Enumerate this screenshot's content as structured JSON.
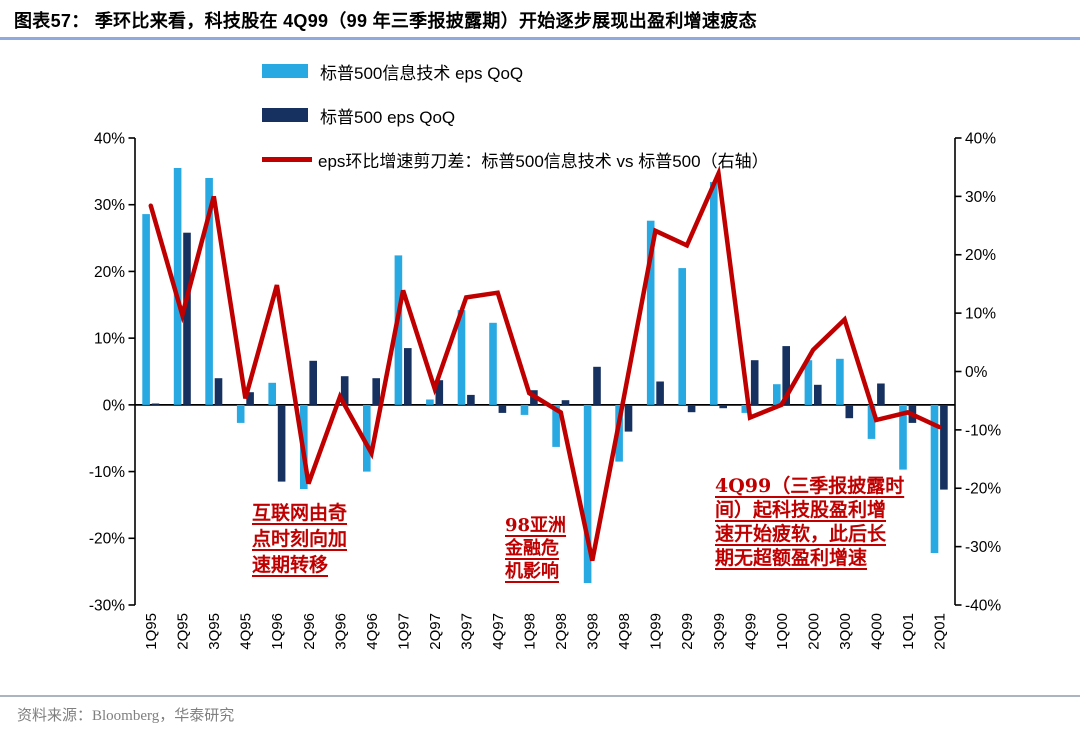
{
  "header": {
    "title": "图表57：  季环比来看，科技股在 4Q99（99 年三季报披露期）开始逐步展现出盈利增速疲态"
  },
  "footer": {
    "source": "资料来源：Bloomberg，华泰研究"
  },
  "colors": {
    "tech_blue": "#29A9E1",
    "sp_navy": "#16315F",
    "scissors_red": "#C00000",
    "title_rule_blue": "#8FAADC",
    "annotation_red": "#C00000",
    "axis_black": "#000000",
    "footer_gray": "#7F7F7F"
  },
  "chart_data": {
    "type": "bar+line",
    "grid": false,
    "legend_position": "top-left",
    "categories": [
      "1Q95",
      "2Q95",
      "3Q95",
      "4Q95",
      "1Q96",
      "2Q96",
      "3Q96",
      "4Q96",
      "1Q97",
      "2Q97",
      "3Q97",
      "4Q97",
      "1Q98",
      "2Q98",
      "3Q98",
      "4Q98",
      "1Q99",
      "2Q99",
      "3Q99",
      "4Q99",
      "1Q00",
      "2Q00",
      "3Q00",
      "4Q00",
      "1Q01",
      "2Q01"
    ],
    "series": [
      {
        "name": "标普500信息技术 eps QoQ",
        "type": "bar",
        "axis": "left",
        "color": "#29A9E1",
        "values": [
          28.6,
          35.5,
          34.0,
          -2.7,
          3.3,
          -12.6,
          0.0,
          -10.0,
          22.4,
          0.8,
          14.2,
          12.3,
          -1.5,
          -6.3,
          -26.7,
          -8.5,
          27.6,
          20.5,
          33.4,
          -1.2,
          3.1,
          6.7,
          6.9,
          -5.1,
          -9.7,
          -22.2
        ]
      },
      {
        "name": "标普500 eps QoQ",
        "type": "bar",
        "axis": "left",
        "color": "#16315F",
        "values": [
          0.2,
          25.8,
          4.0,
          1.9,
          -11.5,
          6.6,
          4.3,
          4.0,
          8.5,
          3.7,
          1.5,
          -1.2,
          2.2,
          0.7,
          5.7,
          -4.0,
          3.5,
          -1.1,
          -0.5,
          6.7,
          8.8,
          3.0,
          -2.0,
          3.2,
          -2.7,
          -12.7
        ]
      },
      {
        "name": "eps环比增速剪刀差：标普500信息技术 vs 标普500（右轴）",
        "type": "line",
        "axis": "right",
        "color": "#C00000",
        "values": [
          28.4,
          9.7,
          30.0,
          -4.6,
          14.8,
          -19.2,
          -4.3,
          -14.0,
          13.9,
          -2.9,
          12.7,
          13.5,
          -3.7,
          -7.0,
          -32.4,
          -4.5,
          24.1,
          21.6,
          33.9,
          -7.9,
          -5.7,
          3.7,
          8.9,
          -8.3,
          -7.0,
          -9.5
        ]
      }
    ],
    "left_axis": {
      "ticks": [
        "40%",
        "30%",
        "20%",
        "10%",
        "0%",
        "-10%",
        "-20%",
        "-30%"
      ],
      "range": [
        -30,
        40
      ]
    },
    "right_axis": {
      "ticks": [
        "40%",
        "30%",
        "20%",
        "10%",
        "0%",
        "-10%",
        "-20%",
        "-30%",
        "-40%"
      ],
      "range": [
        -40,
        40
      ]
    }
  },
  "annotations": [
    {
      "id": "internet-transition",
      "text": "互联网由奇\n点时刻向加\n速期转移"
    },
    {
      "id": "asia-crisis",
      "text": "98亚洲\n金融危\n机影响"
    },
    {
      "id": "4q99-fatigue",
      "text": "4Q99（三季报披露时\n间）起科技股盈利增\n速开始疲软，此后长\n期无超额盈利增速"
    }
  ]
}
